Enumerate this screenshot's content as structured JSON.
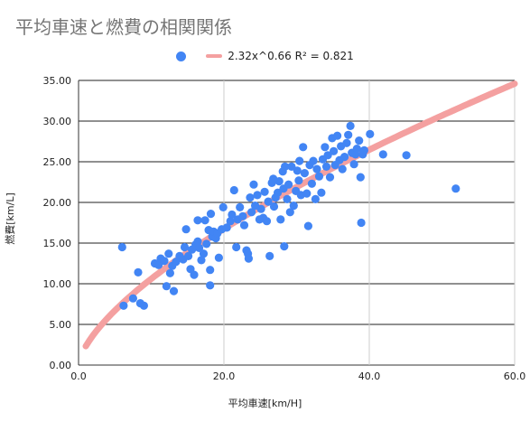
{
  "chart_data": {
    "type": "scatter",
    "title": "平均車速と燃費の相関関係",
    "xlabel": "平均車速[km/H]",
    "ylabel": "燃費[km/L]",
    "xlim": [
      0,
      60
    ],
    "ylim": [
      0,
      35
    ],
    "xticks": [
      "0.0",
      "20.0",
      "40.0",
      "60.0"
    ],
    "yticks": [
      "0.00",
      "5.00",
      "10.00",
      "15.00",
      "20.00",
      "25.00",
      "30.00",
      "35.00"
    ],
    "grid": true,
    "legend_position": "top",
    "colors": {
      "points": "#4285f4",
      "trendline": "#f4a0a0"
    },
    "trendline": {
      "label": "2.32x^0.66 R² = 0.821",
      "a": 2.32,
      "b": 0.66
    },
    "points": [
      [
        6,
        14.5
      ],
      [
        6.2,
        7.3
      ],
      [
        7.5,
        8.2
      ],
      [
        8.2,
        11.4
      ],
      [
        8.5,
        7.6
      ],
      [
        9,
        7.3
      ],
      [
        10.5,
        12.5
      ],
      [
        11,
        12.3
      ],
      [
        11.3,
        13.1
      ],
      [
        11.8,
        12.8
      ],
      [
        12.1,
        9.7
      ],
      [
        12.4,
        13.7
      ],
      [
        12.6,
        11.3
      ],
      [
        12.9,
        12.2
      ],
      [
        13.1,
        9.1
      ],
      [
        13.4,
        12.7
      ],
      [
        13.9,
        13.4
      ],
      [
        14.4,
        13.0
      ],
      [
        14.6,
        14.5
      ],
      [
        14.8,
        16.7
      ],
      [
        15.1,
        13.4
      ],
      [
        15.4,
        11.8
      ],
      [
        15.6,
        14.2
      ],
      [
        15.9,
        11.1
      ],
      [
        16.1,
        14.8
      ],
      [
        16.4,
        15.2
      ],
      [
        16.6,
        14.4
      ],
      [
        16.4,
        17.8
      ],
      [
        16.9,
        12.9
      ],
      [
        17.2,
        13.7
      ],
      [
        17.4,
        17.8
      ],
      [
        17.6,
        14.9
      ],
      [
        17.9,
        16.6
      ],
      [
        18.1,
        9.8
      ],
      [
        18.1,
        11.7
      ],
      [
        18.4,
        15.8
      ],
      [
        18.2,
        18.6
      ],
      [
        18.6,
        16.4
      ],
      [
        18.9,
        15.6
      ],
      [
        19.1,
        16.2
      ],
      [
        19.3,
        13.2
      ],
      [
        19.7,
        16.7
      ],
      [
        19.9,
        19.4
      ],
      [
        20.4,
        16.9
      ],
      [
        20.9,
        17.7
      ],
      [
        21.1,
        18.5
      ],
      [
        21.4,
        21.5
      ],
      [
        21.7,
        14.5
      ],
      [
        21.9,
        17.9
      ],
      [
        22.2,
        19.4
      ],
      [
        22.6,
        18.3
      ],
      [
        22.8,
        17.2
      ],
      [
        23.1,
        14.1
      ],
      [
        23.3,
        13.7
      ],
      [
        23.4,
        13.1
      ],
      [
        23.6,
        20.6
      ],
      [
        23.8,
        18.8
      ],
      [
        24.1,
        22.2
      ],
      [
        24.3,
        19.6
      ],
      [
        24.6,
        20.9
      ],
      [
        24.9,
        17.9
      ],
      [
        25.1,
        19.2
      ],
      [
        25.4,
        18.1
      ],
      [
        25.6,
        21.3
      ],
      [
        25.9,
        17.7
      ],
      [
        26.1,
        20.1
      ],
      [
        26.3,
        13.4
      ],
      [
        26.6,
        22.4
      ],
      [
        26.9,
        19.5
      ],
      [
        27.1,
        20.6
      ],
      [
        26.8,
        22.9
      ],
      [
        27.4,
        21.2
      ],
      [
        27.6,
        22.6
      ],
      [
        27.8,
        17.9
      ],
      [
        28.1,
        23.8
      ],
      [
        28.2,
        21.7
      ],
      [
        28.4,
        24.4
      ],
      [
        28.3,
        14.6
      ],
      [
        28.7,
        20.4
      ],
      [
        28.9,
        22.2
      ],
      [
        29.1,
        18.8
      ],
      [
        29.3,
        24.4
      ],
      [
        29.6,
        19.6
      ],
      [
        29.9,
        21.4
      ],
      [
        30.1,
        23.9
      ],
      [
        30.3,
        22.7
      ],
      [
        30.4,
        25.1
      ],
      [
        30.6,
        20.9
      ],
      [
        30.9,
        26.8
      ],
      [
        31.1,
        23.6
      ],
      [
        31.4,
        21.1
      ],
      [
        31.6,
        17.1
      ],
      [
        31.8,
        24.6
      ],
      [
        32.1,
        22.3
      ],
      [
        32.3,
        25.1
      ],
      [
        32.6,
        20.4
      ],
      [
        32.8,
        24.1
      ],
      [
        33.1,
        23.2
      ],
      [
        33.4,
        21.2
      ],
      [
        33.6,
        25.3
      ],
      [
        33.9,
        26.8
      ],
      [
        34.1,
        24.4
      ],
      [
        34.3,
        25.8
      ],
      [
        34.6,
        23.1
      ],
      [
        34.9,
        27.9
      ],
      [
        35.1,
        26.3
      ],
      [
        35.3,
        24.6
      ],
      [
        35.6,
        28.2
      ],
      [
        35.9,
        25.2
      ],
      [
        36.1,
        26.9
      ],
      [
        36.3,
        24.1
      ],
      [
        36.6,
        25.6
      ],
      [
        36.9,
        27.3
      ],
      [
        37.1,
        28.3
      ],
      [
        37.4,
        29.4
      ],
      [
        37.6,
        26.1
      ],
      [
        37.9,
        24.7
      ],
      [
        38.1,
        25.9
      ],
      [
        38.3,
        26.6
      ],
      [
        38.6,
        27.6
      ],
      [
        38.8,
        23.1
      ],
      [
        38.9,
        17.5
      ],
      [
        39.1,
        25.9
      ],
      [
        39.3,
        26.4
      ],
      [
        40.1,
        28.4
      ],
      [
        41.9,
        25.9
      ],
      [
        45.1,
        25.8
      ],
      [
        51.9,
        21.7
      ]
    ]
  }
}
